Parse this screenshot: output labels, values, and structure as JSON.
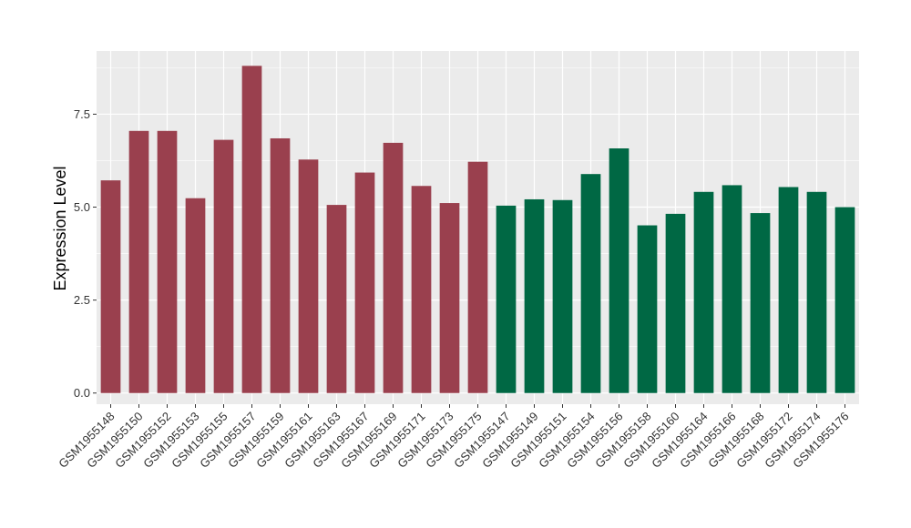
{
  "chart_data": {
    "type": "bar",
    "title": "",
    "xlabel": "",
    "ylabel": "Expression Level",
    "ylim": [
      -0.3,
      9.2
    ],
    "yticks": [
      0.0,
      2.5,
      5.0,
      7.5
    ],
    "ytick_labels": [
      "0.0",
      "2.5",
      "5.0",
      "7.5"
    ],
    "grid": true,
    "legend": "none",
    "categories": [
      "GSM1955148",
      "GSM1955150",
      "GSM1955152",
      "GSM1955153",
      "GSM1955155",
      "GSM1955157",
      "GSM1955159",
      "GSM1955161",
      "GSM1955163",
      "GSM1955167",
      "GSM1955169",
      "GSM1955171",
      "GSM1955173",
      "GSM1955175",
      "GSM1955147",
      "GSM1955149",
      "GSM1955151",
      "GSM1955154",
      "GSM1955156",
      "GSM1955158",
      "GSM1955160",
      "GSM1955164",
      "GSM1955166",
      "GSM1955168",
      "GSM1955172",
      "GSM1955174",
      "GSM1955176"
    ],
    "values": [
      5.72,
      7.05,
      7.05,
      5.24,
      6.81,
      8.8,
      6.85,
      6.28,
      5.06,
      5.93,
      6.73,
      5.57,
      5.11,
      6.22,
      5.04,
      5.21,
      5.19,
      5.89,
      6.58,
      4.51,
      4.82,
      5.41,
      5.59,
      4.84,
      5.54,
      5.41,
      5.0
    ],
    "group": [
      0,
      0,
      0,
      0,
      0,
      0,
      0,
      0,
      0,
      0,
      0,
      0,
      0,
      0,
      1,
      1,
      1,
      1,
      1,
      1,
      1,
      1,
      1,
      1,
      1,
      1,
      1
    ],
    "group_colors": [
      "#9a404e",
      "#006844"
    ],
    "panel_background": "#ebebeb",
    "grid_color": "#ffffff"
  }
}
